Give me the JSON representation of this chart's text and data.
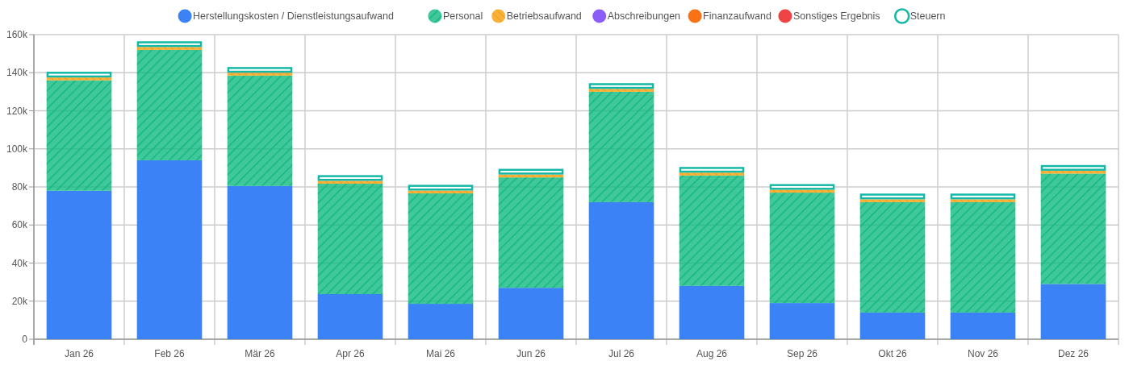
{
  "chart_data": {
    "type": "bar",
    "stacked": true,
    "grid": true,
    "legend": "top",
    "categories": [
      "Jan 26",
      "Feb 26",
      "Mär 26",
      "Apr 26",
      "Mai 26",
      "Jun 26",
      "Jul 26",
      "Aug 26",
      "Sep 26",
      "Okt 26",
      "Nov 26",
      "Dez 26"
    ],
    "ylim": [
      0,
      160000
    ],
    "yticks": [
      {
        "value": 0,
        "label": "0"
      },
      {
        "value": 20000,
        "label": "20k"
      },
      {
        "value": 40000,
        "label": "40k"
      },
      {
        "value": 60000,
        "label": "60k"
      },
      {
        "value": 80000,
        "label": "80k"
      },
      {
        "value": 100000,
        "label": "100k"
      },
      {
        "value": 120000,
        "label": "120k"
      },
      {
        "value": 140000,
        "label": "140k"
      },
      {
        "value": 160000,
        "label": "160k"
      }
    ],
    "series": [
      {
        "name": "Herstellungskosten / Dienstleistungsaufwand",
        "color": "#3b82f6",
        "values": [
          78000,
          94000,
          80500,
          23700,
          18600,
          27000,
          72000,
          28000,
          19000,
          14000,
          14000,
          29000
        ]
      },
      {
        "name": "Personal",
        "color": "#10b981",
        "values": [
          58000,
          58000,
          58000,
          58000,
          58000,
          58000,
          58000,
          58000,
          58000,
          58000,
          58000,
          58000
        ]
      },
      {
        "name": "Betriebsaufwand",
        "color": "#f59e0b",
        "values": [
          1500,
          1500,
          1500,
          1500,
          1500,
          1500,
          1500,
          1500,
          1500,
          1500,
          1500,
          1500
        ]
      },
      {
        "name": "Abschreibungen",
        "color": "#8b5cf6",
        "values": [
          0,
          0,
          0,
          0,
          0,
          0,
          0,
          0,
          0,
          0,
          0,
          0
        ]
      },
      {
        "name": "Finanzaufwand",
        "color": "#f97316",
        "values": [
          0,
          0,
          0,
          0,
          0,
          0,
          0,
          0,
          0,
          0,
          0,
          0
        ]
      },
      {
        "name": "Sonstiges Ergebnis",
        "color": "#ef4444",
        "values": [
          0,
          0,
          0,
          0,
          0,
          0,
          0,
          0,
          0,
          0,
          0,
          0
        ]
      },
      {
        "name": "Steuern",
        "color": "#14b8a6",
        "values": [
          3000,
          3000,
          3000,
          3000,
          3000,
          3000,
          3000,
          3000,
          3000,
          3000,
          3000,
          3000
        ]
      }
    ]
  }
}
